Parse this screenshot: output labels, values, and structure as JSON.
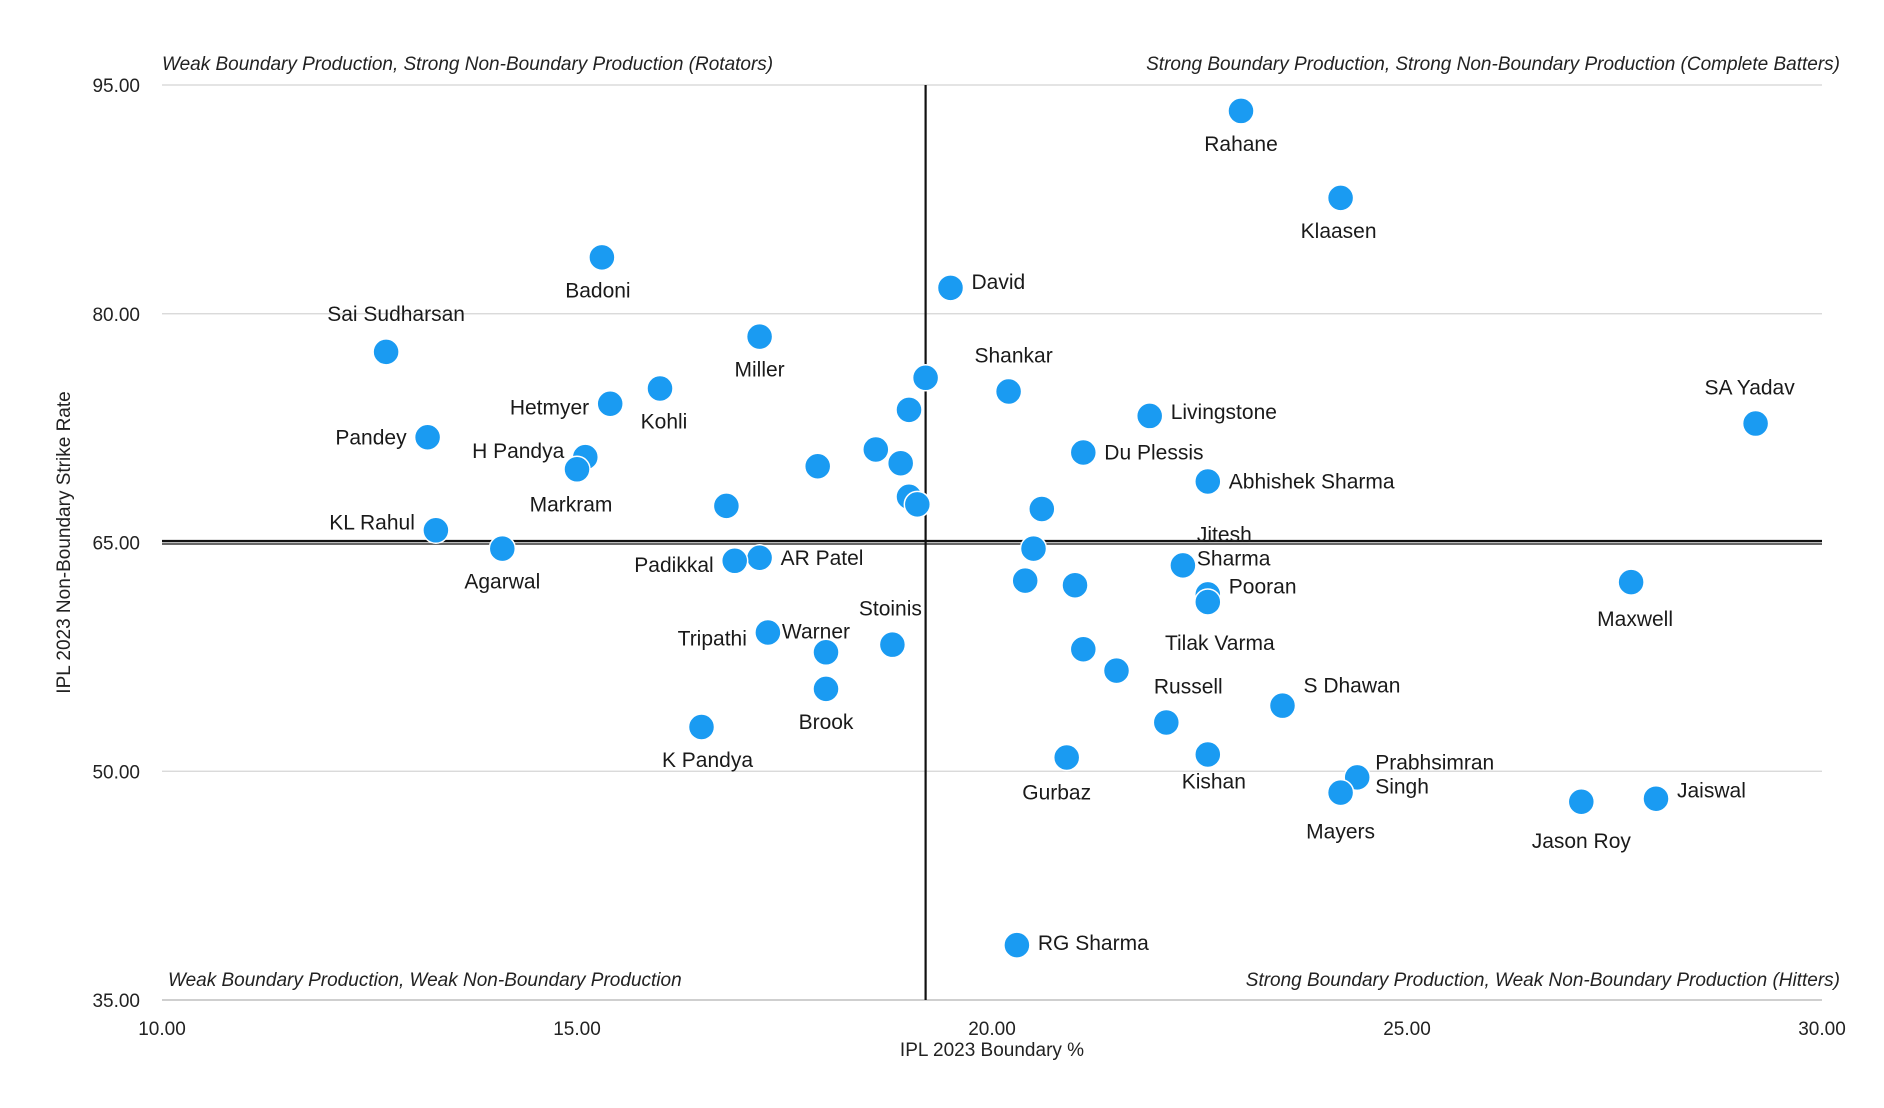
{
  "chart_data": {
    "type": "scatter",
    "title": "",
    "xlabel": "IPL 2023 Boundary %",
    "ylabel": "IPL 2023 Non-Boundary Strike Rate",
    "xlim": [
      10,
      30
    ],
    "ylim": [
      35,
      95
    ],
    "x_ticks": [
      "10.00",
      "15.00",
      "20.00",
      "25.00",
      "30.00"
    ],
    "y_ticks": [
      "35.00",
      "50.00",
      "65.00",
      "80.00",
      "95.00"
    ],
    "grid": "horizontal",
    "marker_color": "#1a9bf2",
    "reference_lines": {
      "x": 19.2,
      "y": 65.0
    },
    "quadrant_labels": {
      "top_left": "Weak Boundary Production, Strong Non-Boundary Production (Rotators)",
      "top_right": "Strong Boundary Production, Strong Non-Boundary Production (Complete Batters)",
      "bottom_left": "Weak Boundary Production, Weak Non-Boundary Production",
      "bottom_right": "Strong Boundary Production, Weak Non-Boundary Production (Hitters)"
    },
    "points": [
      {
        "label": "Rahane",
        "x": 23.0,
        "y": 93.3
      },
      {
        "label": "Klaasen",
        "x": 24.2,
        "y": 87.6
      },
      {
        "label": "Badoni",
        "x": 15.3,
        "y": 83.7
      },
      {
        "label": "David",
        "x": 19.5,
        "y": 81.7
      },
      {
        "label": "Sai Sudharsan",
        "x": 12.7,
        "y": 77.5
      },
      {
        "label": "Miller",
        "x": 17.2,
        "y": 78.5
      },
      {
        "label": "",
        "x": 19.2,
        "y": 75.8
      },
      {
        "label": "Shankar",
        "x": 20.2,
        "y": 74.9
      },
      {
        "label": "Kohli",
        "x": 16.0,
        "y": 75.1
      },
      {
        "label": "Hetmyer",
        "x": 15.4,
        "y": 74.1
      },
      {
        "label": "",
        "x": 19.0,
        "y": 73.7
      },
      {
        "label": "Livingstone",
        "x": 21.9,
        "y": 73.3
      },
      {
        "label": "SA Yadav",
        "x": 29.2,
        "y": 72.8
      },
      {
        "label": "Pandey",
        "x": 13.2,
        "y": 71.9
      },
      {
        "label": "",
        "x": 18.6,
        "y": 71.1
      },
      {
        "label": "Du Plessis",
        "x": 21.1,
        "y": 70.9
      },
      {
        "label": "H Pandya",
        "x": 15.1,
        "y": 70.6
      },
      {
        "label": "",
        "x": 18.9,
        "y": 70.2
      },
      {
        "label": "",
        "x": 17.9,
        "y": 70.0
      },
      {
        "label": "Markram",
        "x": 15.0,
        "y": 69.8
      },
      {
        "label": "Abhishek Sharma",
        "x": 22.6,
        "y": 69.0
      },
      {
        "label": "",
        "x": 19.0,
        "y": 68.0
      },
      {
        "label": "",
        "x": 19.1,
        "y": 67.5
      },
      {
        "label": "",
        "x": 16.8,
        "y": 67.4
      },
      {
        "label": "",
        "x": 20.6,
        "y": 67.2
      },
      {
        "label": "KL Rahul",
        "x": 13.3,
        "y": 65.8
      },
      {
        "label": "Agarwal",
        "x": 14.1,
        "y": 64.6
      },
      {
        "label": "",
        "x": 20.5,
        "y": 64.6
      },
      {
        "label": "AR Patel",
        "x": 17.2,
        "y": 64.0
      },
      {
        "label": "Padikkal",
        "x": 16.9,
        "y": 63.8
      },
      {
        "label": "Jitesh Sharma",
        "x": 22.3,
        "y": 63.5
      },
      {
        "label": "",
        "x": 20.4,
        "y": 62.5
      },
      {
        "label": "Maxwell",
        "x": 27.7,
        "y": 62.4
      },
      {
        "label": "",
        "x": 21.0,
        "y": 62.2
      },
      {
        "label": "Pooran",
        "x": 22.6,
        "y": 61.6
      },
      {
        "label": "Tilak Varma",
        "x": 22.6,
        "y": 61.1
      },
      {
        "label": "Tripathi",
        "x": 17.3,
        "y": 59.1
      },
      {
        "label": "Stoinis",
        "x": 18.8,
        "y": 58.3
      },
      {
        "label": "",
        "x": 21.1,
        "y": 58.0
      },
      {
        "label": "Warner",
        "x": 18.0,
        "y": 57.8
      },
      {
        "label": "",
        "x": 21.5,
        "y": 56.6
      },
      {
        "label": "Brook",
        "x": 18.0,
        "y": 55.4
      },
      {
        "label": "S Dhawan",
        "x": 23.5,
        "y": 54.3
      },
      {
        "label": "Russell",
        "x": 22.1,
        "y": 53.2
      },
      {
        "label": "K Pandya",
        "x": 16.5,
        "y": 52.9
      },
      {
        "label": "Kishan",
        "x": 22.6,
        "y": 51.1
      },
      {
        "label": "Gurbaz",
        "x": 20.9,
        "y": 50.9
      },
      {
        "label": "Prabhsimran Singh",
        "x": 24.4,
        "y": 49.6
      },
      {
        "label": "Mayers",
        "x": 24.2,
        "y": 48.6
      },
      {
        "label": "Jaiswal",
        "x": 28.0,
        "y": 48.2
      },
      {
        "label": "Jason Roy",
        "x": 27.1,
        "y": 48.0
      },
      {
        "label": "RG Sharma",
        "x": 20.3,
        "y": 38.6
      }
    ]
  }
}
